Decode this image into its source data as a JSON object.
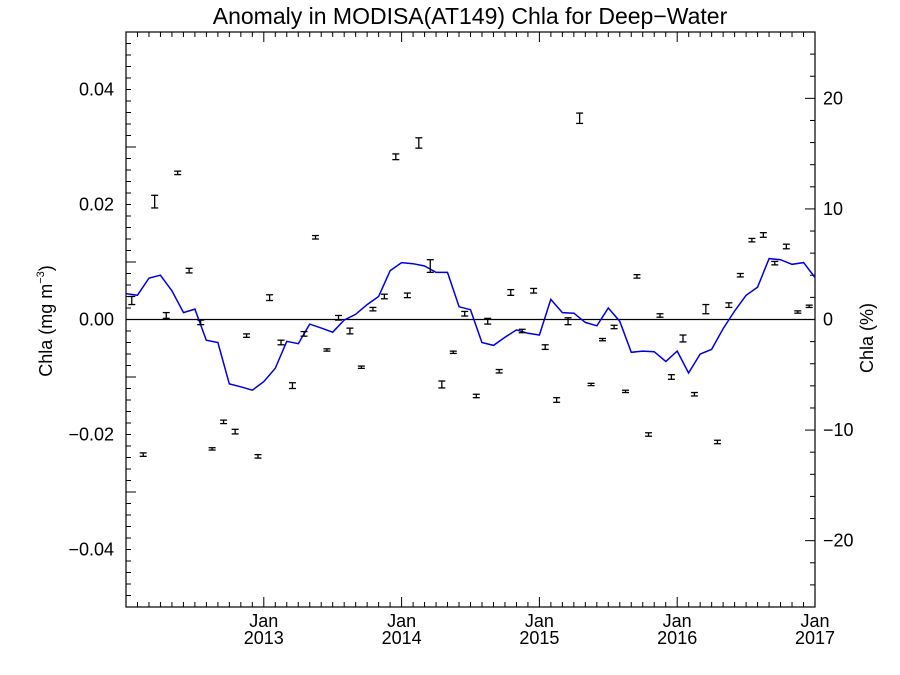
{
  "chart_data": {
    "type": "line",
    "title": "Anomaly in MODISA(AT149) Chla for Deep−Water",
    "ylabel_left": "Chla (mg m",
    "ylabel_left_sup": "−3",
    "ylabel_left_close": ")",
    "ylabel_right": "Chla (%)",
    "xlim": [
      2012.0,
      2017.0
    ],
    "ylim_left": [
      -0.05,
      0.05
    ],
    "ylim_right": [
      -26,
      26
    ],
    "x_ticks": [
      {
        "x": 2013.0,
        "month": "Jan",
        "year": "2013"
      },
      {
        "x": 2014.0,
        "month": "Jan",
        "year": "2014"
      },
      {
        "x": 2015.0,
        "month": "Jan",
        "year": "2015"
      },
      {
        "x": 2016.0,
        "month": "Jan",
        "year": "2016"
      },
      {
        "x": 2017.0,
        "month": "Jan",
        "year": "2017"
      }
    ],
    "y_ticks_left": [
      {
        "v": -0.04,
        "label": "−0.04"
      },
      {
        "v": -0.02,
        "label": "−0.02"
      },
      {
        "v": 0.0,
        "label": "0.00"
      },
      {
        "v": 0.02,
        "label": "0.02"
      },
      {
        "v": 0.04,
        "label": "0.04"
      }
    ],
    "y_ticks_right": [
      {
        "v": -20,
        "label": "−20"
      },
      {
        "v": -10,
        "label": "−10"
      },
      {
        "v": 0,
        "label": "0"
      },
      {
        "v": 10,
        "label": "10"
      },
      {
        "v": 20,
        "label": "20"
      }
    ],
    "zero_line": 0.0,
    "colors": {
      "line": "#0000dd",
      "points": "#000000"
    },
    "series": [
      {
        "type": "line",
        "x": [
          2012.0,
          2012.083,
          2012.167,
          2012.25,
          2012.333,
          2012.417,
          2012.5,
          2012.583,
          2012.667,
          2012.75,
          2012.833,
          2012.917,
          2013.0,
          2013.083,
          2013.167,
          2013.25,
          2013.333,
          2013.417,
          2013.5,
          2013.583,
          2013.667,
          2013.75,
          2013.833,
          2013.917,
          2014.0,
          2014.083,
          2014.167,
          2014.25,
          2014.333,
          2014.417,
          2014.5,
          2014.583,
          2014.667,
          2014.75,
          2014.833,
          2014.917,
          2015.0,
          2015.083,
          2015.167,
          2015.25,
          2015.333,
          2015.417,
          2015.5,
          2015.583,
          2015.667,
          2015.75,
          2015.833,
          2015.917,
          2016.0,
          2016.083,
          2016.167,
          2016.25,
          2016.333,
          2016.417,
          2016.5,
          2016.583,
          2016.667,
          2016.75,
          2016.833,
          2016.917,
          2017.0
        ],
        "y": [
          0.0045,
          0.0042,
          0.0072,
          0.0077,
          0.005,
          0.0012,
          0.0018,
          -0.0036,
          -0.004,
          -0.0112,
          -0.0117,
          -0.0123,
          -0.0108,
          -0.0085,
          -0.0038,
          -0.0042,
          -0.0008,
          -0.0015,
          -0.0022,
          -0.0001,
          0.0009,
          0.0026,
          0.004,
          0.0085,
          0.0099,
          0.0097,
          0.0093,
          0.0082,
          0.0082,
          0.0022,
          0.0017,
          -0.004,
          -0.0045,
          -0.0031,
          -0.0018,
          -0.0024,
          -0.0027,
          0.0035,
          0.0012,
          0.0011,
          -0.0005,
          -0.0011,
          0.002,
          -0.0003,
          -0.0057,
          -0.0055,
          -0.0056,
          -0.0073,
          -0.0055,
          -0.0093,
          -0.006,
          -0.0052,
          -0.0016,
          0.0015,
          0.0042,
          0.0056,
          0.0106,
          0.0104,
          0.0096,
          0.0099,
          0.0073
        ]
      },
      {
        "type": "errorbar",
        "x": [
          2012.042,
          2012.125,
          2012.208,
          2012.292,
          2012.375,
          2012.458,
          2012.542,
          2012.625,
          2012.708,
          2012.792,
          2012.875,
          2012.958,
          2013.042,
          2013.125,
          2013.208,
          2013.292,
          2013.375,
          2013.458,
          2013.542,
          2013.625,
          2013.708,
          2013.792,
          2013.875,
          2013.958,
          2014.042,
          2014.125,
          2014.208,
          2014.292,
          2014.375,
          2014.458,
          2014.542,
          2014.625,
          2014.708,
          2014.792,
          2014.875,
          2014.958,
          2015.042,
          2015.125,
          2015.208,
          2015.292,
          2015.375,
          2015.458,
          2015.542,
          2015.625,
          2015.708,
          2015.792,
          2015.875,
          2015.958,
          2016.042,
          2016.125,
          2016.208,
          2016.292,
          2016.375,
          2016.458,
          2016.542,
          2016.625,
          2016.708,
          2016.792,
          2016.875,
          2016.958
        ],
        "y": [
          0.0033,
          -0.0235,
          0.0205,
          0.0007,
          0.0255,
          0.0085,
          -0.0005,
          -0.0225,
          -0.0178,
          -0.0195,
          -0.0028,
          -0.0238,
          0.0038,
          -0.004,
          -0.0115,
          -0.0025,
          0.0143,
          -0.0053,
          0.0003,
          -0.002,
          -0.0083,
          0.0018,
          0.004,
          0.0283,
          0.0042,
          0.0307,
          0.0093,
          -0.0113,
          -0.0057,
          0.001,
          -0.0133,
          -0.0003,
          -0.009,
          0.0047,
          -0.002,
          0.005,
          -0.0048,
          -0.014,
          -0.0003,
          0.035,
          -0.0113,
          -0.0035,
          -0.0013,
          -0.0125,
          0.0075,
          -0.02,
          0.0007,
          -0.01,
          -0.0033,
          -0.013,
          0.0018,
          -0.0213,
          0.0025,
          0.0077,
          0.0138,
          0.0147,
          0.0098,
          0.0127,
          0.0013,
          0.0023
        ],
        "err": [
          0.0007,
          0.0003,
          0.0011,
          0.0005,
          0.0003,
          0.0004,
          0.0004,
          0.0002,
          0.0003,
          0.0004,
          0.0003,
          0.0003,
          0.0005,
          0.0004,
          0.0005,
          0.0004,
          0.0003,
          0.0002,
          0.0004,
          0.0005,
          0.0002,
          0.0003,
          0.0004,
          0.0005,
          0.0004,
          0.0009,
          0.0011,
          0.0006,
          0.0002,
          0.0004,
          0.0003,
          0.0005,
          0.0003,
          0.0005,
          0.0003,
          0.0004,
          0.0004,
          0.0004,
          0.0006,
          0.0009,
          0.0002,
          0.0002,
          0.0003,
          0.0002,
          0.0003,
          0.0003,
          0.0003,
          0.0004,
          0.0006,
          0.0003,
          0.0008,
          0.0003,
          0.0004,
          0.0003,
          0.0003,
          0.0004,
          0.0003,
          0.0004,
          0.0002,
          0.0002
        ]
      }
    ]
  }
}
